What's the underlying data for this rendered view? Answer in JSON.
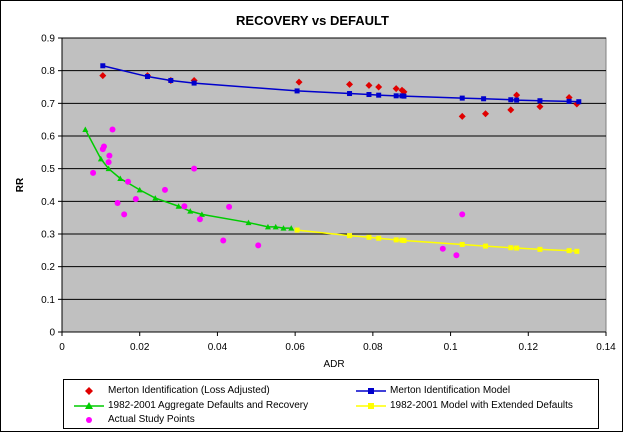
{
  "chart_data": {
    "type": "scatter",
    "title": "RECOVERY vs DEFAULT",
    "xlabel": "ADR",
    "ylabel": "RR",
    "xlim": [
      0,
      0.14
    ],
    "ylim": [
      0,
      0.9
    ],
    "xticks": [
      "0",
      "0.02",
      "0.04",
      "0.06",
      "0.08",
      "0.1",
      "0.12",
      "0.14"
    ],
    "yticks": [
      "0",
      "0.1",
      "0.2",
      "0.3",
      "0.4",
      "0.5",
      "0.6",
      "0.7",
      "0.8",
      "0.9"
    ],
    "grid": "horizontal",
    "plot_background": "#c0c0c0",
    "legend_position": "bottom",
    "series": [
      {
        "name": "Merton Identification (Loss Adjusted)",
        "style": "markers",
        "marker": "diamond",
        "color": "#e00000",
        "points": [
          [
            0.0105,
            0.785
          ],
          [
            0.022,
            0.785
          ],
          [
            0.028,
            0.77
          ],
          [
            0.034,
            0.77
          ],
          [
            0.061,
            0.765
          ],
          [
            0.074,
            0.758
          ],
          [
            0.079,
            0.755
          ],
          [
            0.0815,
            0.75
          ],
          [
            0.086,
            0.745
          ],
          [
            0.0875,
            0.74
          ],
          [
            0.088,
            0.735
          ],
          [
            0.103,
            0.66
          ],
          [
            0.109,
            0.668
          ],
          [
            0.1155,
            0.68
          ],
          [
            0.117,
            0.725
          ],
          [
            0.123,
            0.69
          ],
          [
            0.1305,
            0.718
          ],
          [
            0.1325,
            0.698
          ]
        ]
      },
      {
        "name": "Merton Identification Model",
        "style": "line-markers",
        "marker": "square",
        "color": "#0000cc",
        "points": [
          [
            0.0105,
            0.815
          ],
          [
            0.022,
            0.782
          ],
          [
            0.028,
            0.77
          ],
          [
            0.034,
            0.762
          ],
          [
            0.0605,
            0.738
          ],
          [
            0.074,
            0.73
          ],
          [
            0.079,
            0.727
          ],
          [
            0.0815,
            0.725
          ],
          [
            0.086,
            0.723
          ],
          [
            0.0875,
            0.723
          ],
          [
            0.088,
            0.722
          ],
          [
            0.103,
            0.716
          ],
          [
            0.1085,
            0.714
          ],
          [
            0.1155,
            0.711
          ],
          [
            0.117,
            0.71
          ],
          [
            0.123,
            0.708
          ],
          [
            0.1305,
            0.706
          ],
          [
            0.133,
            0.705
          ]
        ]
      },
      {
        "name": "1982-2001 Aggregate Defaults and Recovery",
        "style": "line-markers",
        "marker": "triangle",
        "color": "#00cc00",
        "points": [
          [
            0.006,
            0.62
          ],
          [
            0.01,
            0.53
          ],
          [
            0.012,
            0.5
          ],
          [
            0.015,
            0.47
          ],
          [
            0.02,
            0.435
          ],
          [
            0.024,
            0.41
          ],
          [
            0.03,
            0.385
          ],
          [
            0.033,
            0.37
          ],
          [
            0.036,
            0.36
          ],
          [
            0.048,
            0.335
          ],
          [
            0.053,
            0.322
          ],
          [
            0.055,
            0.322
          ],
          [
            0.057,
            0.318
          ],
          [
            0.059,
            0.318
          ]
        ]
      },
      {
        "name": "1982-2001 Model with Extended Defaults",
        "style": "line-markers",
        "marker": "square",
        "color": "#ffff00",
        "points": [
          [
            0.0605,
            0.312
          ],
          [
            0.074,
            0.295
          ],
          [
            0.079,
            0.29
          ],
          [
            0.0815,
            0.287
          ],
          [
            0.086,
            0.282
          ],
          [
            0.0875,
            0.281
          ],
          [
            0.088,
            0.28
          ],
          [
            0.103,
            0.268
          ],
          [
            0.109,
            0.263
          ],
          [
            0.1155,
            0.258
          ],
          [
            0.117,
            0.257
          ],
          [
            0.123,
            0.253
          ],
          [
            0.1305,
            0.249
          ],
          [
            0.1325,
            0.247
          ]
        ]
      },
      {
        "name": "Actual Study Points",
        "style": "markers",
        "marker": "circle",
        "color": "#ff00ff",
        "points": [
          [
            0.008,
            0.487
          ],
          [
            0.0105,
            0.56
          ],
          [
            0.0108,
            0.568
          ],
          [
            0.012,
            0.52
          ],
          [
            0.0122,
            0.54
          ],
          [
            0.013,
            0.62
          ],
          [
            0.0143,
            0.395
          ],
          [
            0.016,
            0.36
          ],
          [
            0.017,
            0.46
          ],
          [
            0.019,
            0.407
          ],
          [
            0.0265,
            0.435
          ],
          [
            0.0315,
            0.385
          ],
          [
            0.034,
            0.5
          ],
          [
            0.0355,
            0.345
          ],
          [
            0.0415,
            0.28
          ],
          [
            0.043,
            0.383
          ],
          [
            0.0505,
            0.265
          ],
          [
            0.098,
            0.255
          ],
          [
            0.1015,
            0.235
          ],
          [
            0.103,
            0.36
          ]
        ]
      }
    ]
  }
}
